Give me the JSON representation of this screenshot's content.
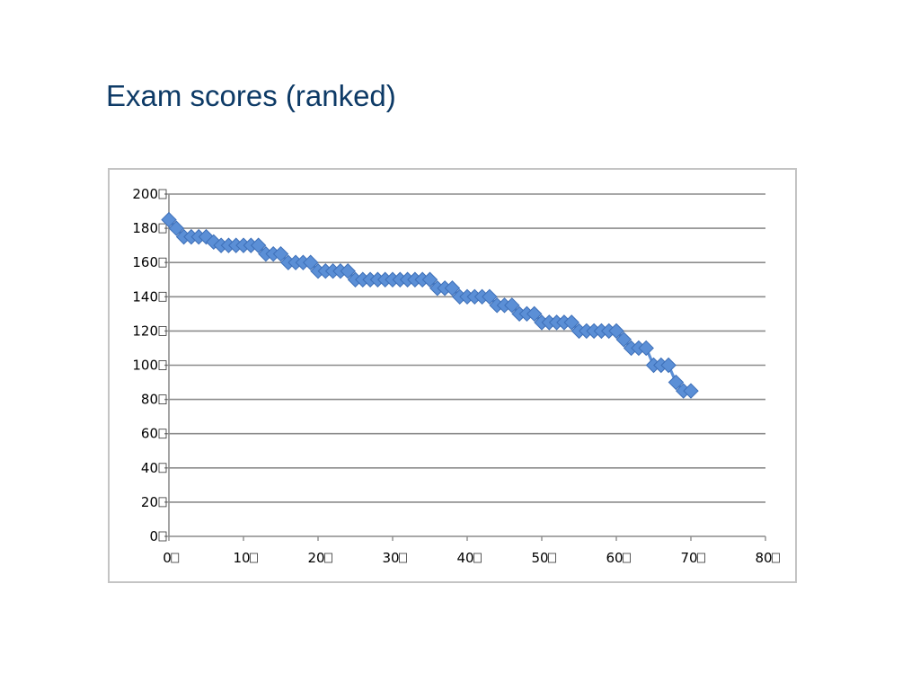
{
  "page": {
    "title": "Exam scores (ranked)"
  },
  "chart_data": {
    "type": "line",
    "title": "",
    "xlabel": "",
    "ylabel": "",
    "xlim": [
      0,
      80
    ],
    "ylim": [
      0,
      200
    ],
    "x_ticks": [
      0,
      10,
      20,
      30,
      40,
      50,
      60,
      70,
      80
    ],
    "y_ticks": [
      0,
      20,
      40,
      60,
      80,
      100,
      120,
      140,
      160,
      180,
      200
    ],
    "grid": "horizontal",
    "legend": "none",
    "marker": "diamond",
    "series": [
      {
        "color": "#5b8fd6",
        "x": [
          0,
          1,
          2,
          3,
          4,
          5,
          6,
          7,
          8,
          9,
          10,
          11,
          12,
          13,
          14,
          15,
          16,
          17,
          18,
          19,
          20,
          21,
          22,
          23,
          24,
          25,
          26,
          27,
          28,
          29,
          30,
          31,
          32,
          33,
          34,
          35,
          36,
          37,
          38,
          39,
          40,
          41,
          42,
          43,
          44,
          45,
          46,
          47,
          48,
          49,
          50,
          51,
          52,
          53,
          54,
          55,
          56,
          57,
          58,
          59,
          60,
          61,
          62,
          63,
          64,
          65,
          66,
          67,
          68,
          69,
          70
        ],
        "y": [
          185,
          180,
          175,
          175,
          175,
          175,
          172,
          170,
          170,
          170,
          170,
          170,
          170,
          165,
          165,
          165,
          160,
          160,
          160,
          160,
          155,
          155,
          155,
          155,
          155,
          150,
          150,
          150,
          150,
          150,
          150,
          150,
          150,
          150,
          150,
          150,
          145,
          145,
          145,
          140,
          140,
          140,
          140,
          140,
          135,
          135,
          135,
          130,
          130,
          130,
          125,
          125,
          125,
          125,
          125,
          120,
          120,
          120,
          120,
          120,
          120,
          115,
          110,
          110,
          110,
          100,
          100,
          100,
          90,
          85,
          85
        ]
      }
    ]
  }
}
